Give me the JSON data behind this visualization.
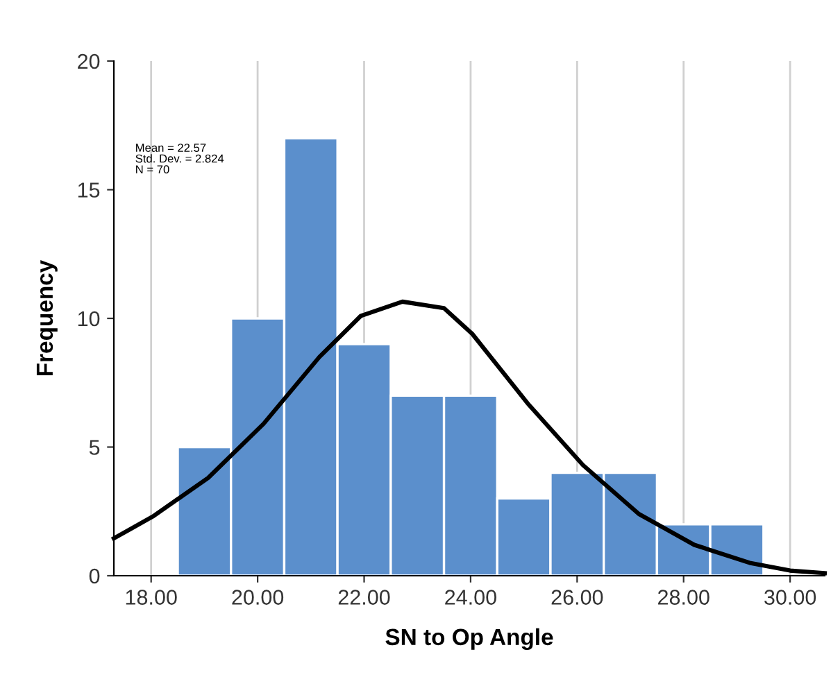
{
  "chart_data": {
    "type": "histogram",
    "xlabel": "SN to Op Angle",
    "ylabel": "Frequency",
    "bins": [
      18.5,
      19.5,
      20.5,
      21.5,
      22.5,
      23.5,
      24.5,
      25.5,
      26.5,
      27.5,
      28.5,
      29.5
    ],
    "values": [
      5,
      10,
      17,
      9,
      7,
      7,
      3,
      4,
      4,
      2,
      2
    ],
    "color": "#5b8fcc",
    "series": [
      {
        "type": "line",
        "color": "#000000",
        "x": [
          17.3,
          18.03,
          19.07,
          20.11,
          21.16,
          21.94,
          22.72,
          23.5,
          24.03,
          25.07,
          26.11,
          27.16,
          28.2,
          29.24,
          30.0,
          30.65
        ],
        "values": [
          1.45,
          2.3,
          3.8,
          5.9,
          8.5,
          10.1,
          10.65,
          10.4,
          9.4,
          6.7,
          4.3,
          2.4,
          1.2,
          0.5,
          0.2,
          0.1
        ]
      }
    ],
    "xlim": [
      17.3,
      30.65
    ],
    "xticks": [
      {
        "value": 18,
        "label": "18.00"
      },
      {
        "value": 20,
        "label": "20.00"
      },
      {
        "value": 22,
        "label": "22.00"
      },
      {
        "value": 24,
        "label": "24.00"
      },
      {
        "value": 26,
        "label": "26.00"
      },
      {
        "value": 28,
        "label": "28.00"
      },
      {
        "value": 30,
        "label": "30.00"
      }
    ],
    "ylim": [
      0,
      20
    ],
    "yticks": [
      0,
      5,
      10,
      15,
      20
    ],
    "grid": "x",
    "annotations": [
      "Mean = 22.57\nStd. Dev. = 2.824\nN = 70"
    ]
  }
}
